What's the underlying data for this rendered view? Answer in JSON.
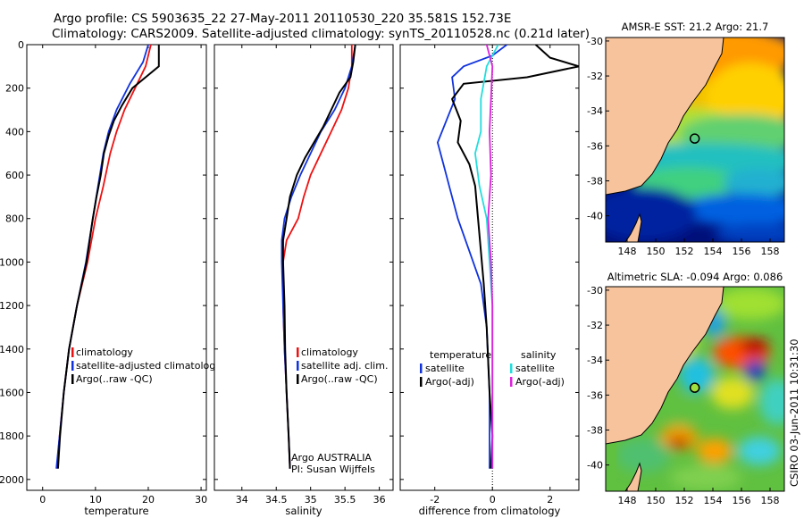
{
  "header": {
    "line1": "Argo profile: CS 5903635_22 27-May-2011 20110530_220 35.581S 152.73E",
    "line2": "Climatology: CARS2009. Satellite-adjusted climatology: synTS_20110528.nc (0.21d later)"
  },
  "side_stamp": "CSIRO 03-Jun-2011 10:31:30",
  "colors": {
    "climatology": "#ee1111",
    "satellite": "#1133dd",
    "argo": "#000000",
    "sat_salinity": "#22dddd",
    "argo_salinity": "#dd22dd",
    "land": "#f6c39c"
  },
  "chart_data": [
    {
      "type": "line",
      "id": "temperature",
      "xlabel": "temperature",
      "ylabel": "",
      "xlim": [
        -3,
        31
      ],
      "ylim": [
        2050,
        0
      ],
      "xticks": [
        "0",
        "10",
        "20",
        "30"
      ],
      "xtick_values": [
        0,
        10,
        20,
        30
      ],
      "yticks": [
        "0",
        "200",
        "400",
        "600",
        "800",
        "1000",
        "1200",
        "1400",
        "1600",
        "1800",
        "2000"
      ],
      "ytick_values": [
        0,
        200,
        400,
        600,
        800,
        1000,
        1200,
        1400,
        1600,
        1800,
        2000
      ],
      "legend": [
        "climatology",
        "satellite-adjusted climatology",
        "Argo(..raw -QC)"
      ],
      "series": [
        {
          "name": "climatology",
          "color": "#ee1111",
          "points": [
            [
              20.5,
              0
            ],
            [
              19.5,
              100
            ],
            [
              17.5,
              200
            ],
            [
              15.5,
              300
            ],
            [
              14,
              400
            ],
            [
              12.8,
              500
            ],
            [
              11.5,
              650
            ],
            [
              10,
              800
            ],
            [
              8.5,
              1000
            ],
            [
              6.5,
              1200
            ],
            [
              5,
              1400
            ],
            [
              4,
              1600
            ],
            [
              3.2,
              1800
            ],
            [
              2.7,
              1950
            ]
          ]
        },
        {
          "name": "satellite-adjusted climatology",
          "color": "#1133dd",
          "points": [
            [
              20,
              0
            ],
            [
              19,
              80
            ],
            [
              16.5,
              180
            ],
            [
              14,
              300
            ],
            [
              12.5,
              400
            ],
            [
              11.5,
              500
            ],
            [
              10.5,
              650
            ],
            [
              9.5,
              800
            ],
            [
              8.2,
              1000
            ],
            [
              6.5,
              1200
            ],
            [
              5,
              1400
            ],
            [
              4,
              1600
            ],
            [
              3.2,
              1800
            ],
            [
              2.6,
              1950
            ]
          ]
        },
        {
          "name": "Argo(..raw -QC)",
          "color": "#000000",
          "points": [
            [
              22,
              0
            ],
            [
              22,
              100
            ],
            [
              19.5,
              150
            ],
            [
              17,
              200
            ],
            [
              15,
              280
            ],
            [
              13.5,
              350
            ],
            [
              12.5,
              420
            ],
            [
              11.6,
              500
            ],
            [
              11,
              600
            ],
            [
              10.2,
              700
            ],
            [
              9.5,
              800
            ],
            [
              8.3,
              1000
            ],
            [
              6.5,
              1200
            ],
            [
              5,
              1400
            ],
            [
              4,
              1600
            ],
            [
              3.3,
              1800
            ],
            [
              2.9,
              1950
            ]
          ]
        }
      ]
    },
    {
      "type": "line",
      "id": "salinity",
      "xlabel": "salinity",
      "xlim": [
        33.6,
        36.2
      ],
      "ylim": [
        2050,
        0
      ],
      "xticks": [
        "34",
        "34.5",
        "35",
        "35.5",
        "36"
      ],
      "xtick_values": [
        34,
        34.5,
        35,
        35.5,
        36
      ],
      "legend": [
        "climatology",
        "satellite adj. clim.",
        "Argo(..raw -QC)"
      ],
      "notes": [
        "Argo AUSTRALIA",
        "PI: Susan Wijffels"
      ],
      "series": [
        {
          "name": "climatology",
          "color": "#ee1111",
          "points": [
            [
              35.6,
              0
            ],
            [
              35.6,
              100
            ],
            [
              35.55,
              200
            ],
            [
              35.45,
              300
            ],
            [
              35.3,
              400
            ],
            [
              35.15,
              500
            ],
            [
              35,
              600
            ],
            [
              34.9,
              700
            ],
            [
              34.82,
              800
            ],
            [
              34.65,
              900
            ],
            [
              34.6,
              1000
            ],
            [
              34.6,
              1200
            ],
            [
              34.62,
              1400
            ],
            [
              34.65,
              1600
            ],
            [
              34.68,
              1800
            ],
            [
              34.7,
              1950
            ]
          ]
        },
        {
          "name": "satellite adj. clim.",
          "color": "#1133dd",
          "points": [
            [
              35.65,
              0
            ],
            [
              35.6,
              100
            ],
            [
              35.5,
              200
            ],
            [
              35.35,
              300
            ],
            [
              35.15,
              400
            ],
            [
              35,
              500
            ],
            [
              34.85,
              600
            ],
            [
              34.72,
              700
            ],
            [
              34.62,
              800
            ],
            [
              34.58,
              900
            ],
            [
              34.58,
              1000
            ],
            [
              34.6,
              1200
            ],
            [
              34.62,
              1400
            ],
            [
              34.65,
              1600
            ],
            [
              34.68,
              1800
            ],
            [
              34.7,
              1950
            ]
          ]
        },
        {
          "name": "Argo(..raw -QC)",
          "color": "#000000",
          "points": [
            [
              35.65,
              0
            ],
            [
              35.62,
              80
            ],
            [
              35.58,
              150
            ],
            [
              35.42,
              220
            ],
            [
              35.3,
              300
            ],
            [
              35.18,
              380
            ],
            [
              35.05,
              450
            ],
            [
              34.92,
              520
            ],
            [
              34.8,
              600
            ],
            [
              34.7,
              700
            ],
            [
              34.65,
              800
            ],
            [
              34.6,
              900
            ],
            [
              34.6,
              1000
            ],
            [
              34.62,
              1200
            ],
            [
              34.63,
              1400
            ],
            [
              34.65,
              1600
            ],
            [
              34.68,
              1800
            ],
            [
              34.7,
              1950
            ]
          ]
        }
      ]
    },
    {
      "type": "line",
      "id": "difference",
      "xlabel": "difference from climatology",
      "xlim": [
        -3.2,
        3
      ],
      "ylim": [
        2050,
        0
      ],
      "xticks": [
        "-2",
        "0",
        "2"
      ],
      "xtick_values": [
        -2,
        0,
        2
      ],
      "legend_temperature_heading": "temperature",
      "legend_salinity_heading": "salinity",
      "legend": [
        "satellite",
        "Argo(-adj)",
        "satellite",
        "Argo(-adj)"
      ],
      "series": [
        {
          "name": "temperature satellite",
          "color": "#1133dd",
          "points": [
            [
              0.5,
              0
            ],
            [
              0,
              50
            ],
            [
              -1,
              100
            ],
            [
              -1.4,
              150
            ],
            [
              -1.3,
              250
            ],
            [
              -1.6,
              350
            ],
            [
              -1.9,
              450
            ],
            [
              -1.7,
              550
            ],
            [
              -1.5,
              650
            ],
            [
              -1.2,
              800
            ],
            [
              -0.8,
              950
            ],
            [
              -0.4,
              1100
            ],
            [
              -0.2,
              1300
            ],
            [
              -0.1,
              1600
            ],
            [
              -0.1,
              1800
            ],
            [
              -0.1,
              1950
            ]
          ]
        },
        {
          "name": "temperature Argo(-adj)",
          "color": "#000000",
          "points": [
            [
              1.5,
              0
            ],
            [
              2,
              60
            ],
            [
              3,
              100
            ],
            [
              1.2,
              150
            ],
            [
              -1,
              180
            ],
            [
              -1.4,
              250
            ],
            [
              -1.1,
              350
            ],
            [
              -1.2,
              450
            ],
            [
              -0.8,
              550
            ],
            [
              -0.6,
              650
            ],
            [
              -0.5,
              800
            ],
            [
              -0.4,
              950
            ],
            [
              -0.3,
              1100
            ],
            [
              -0.2,
              1300
            ],
            [
              -0.1,
              1600
            ],
            [
              0,
              1800
            ],
            [
              -0.05,
              1950
            ]
          ]
        },
        {
          "name": "salinity satellite",
          "color": "#22dddd",
          "points": [
            [
              0.2,
              0
            ],
            [
              -0.2,
              100
            ],
            [
              -0.4,
              250
            ],
            [
              -0.4,
              400
            ],
            [
              -0.6,
              500
            ],
            [
              -0.45,
              650
            ],
            [
              -0.2,
              800
            ],
            [
              -0.1,
              1000
            ],
            [
              0,
              1200
            ],
            [
              0,
              1400
            ],
            [
              0,
              1800
            ],
            [
              0,
              1950
            ]
          ]
        },
        {
          "name": "salinity Argo(-adj)",
          "color": "#dd22dd",
          "points": [
            [
              -0.2,
              0
            ],
            [
              0,
              100
            ],
            [
              -0.05,
              250
            ],
            [
              -0.1,
              400
            ],
            [
              -0.05,
              600
            ],
            [
              -0.15,
              800
            ],
            [
              -0.05,
              1000
            ],
            [
              0,
              1200
            ],
            [
              0,
              1400
            ],
            [
              0,
              1800
            ],
            [
              0,
              1950
            ]
          ]
        }
      ]
    },
    {
      "type": "heatmap",
      "id": "sst_map",
      "title": "AMSR-E SST: 21.2 Argo: 21.7",
      "xlim": [
        146.5,
        159
      ],
      "ylim": [
        -41.5,
        -29.8
      ],
      "xticks": [
        "148",
        "150",
        "152",
        "154",
        "156",
        "158"
      ],
      "xtick_values": [
        148,
        150,
        152,
        154,
        156,
        158
      ],
      "yticks": [
        "-30",
        "-32",
        "-34",
        "-36",
        "-38",
        "-40"
      ],
      "ytick_values": [
        -30,
        -32,
        -34,
        -36,
        -38,
        -40
      ],
      "marker": {
        "lon": 152.73,
        "lat": -35.581
      }
    },
    {
      "type": "heatmap",
      "id": "sla_map",
      "title": "Altimetric SLA: -0.094 Argo: 0.086",
      "xlim": [
        146.5,
        159
      ],
      "ylim": [
        -41.5,
        -29.8
      ],
      "xticks": [
        "148",
        "150",
        "152",
        "154",
        "156",
        "158"
      ],
      "xtick_values": [
        148,
        150,
        152,
        154,
        156,
        158
      ],
      "yticks": [
        "-30",
        "-32",
        "-34",
        "-36",
        "-38",
        "-40"
      ],
      "ytick_values": [
        -30,
        -32,
        -34,
        -36,
        -38,
        -40
      ],
      "marker": {
        "lon": 152.73,
        "lat": -35.581
      }
    }
  ]
}
